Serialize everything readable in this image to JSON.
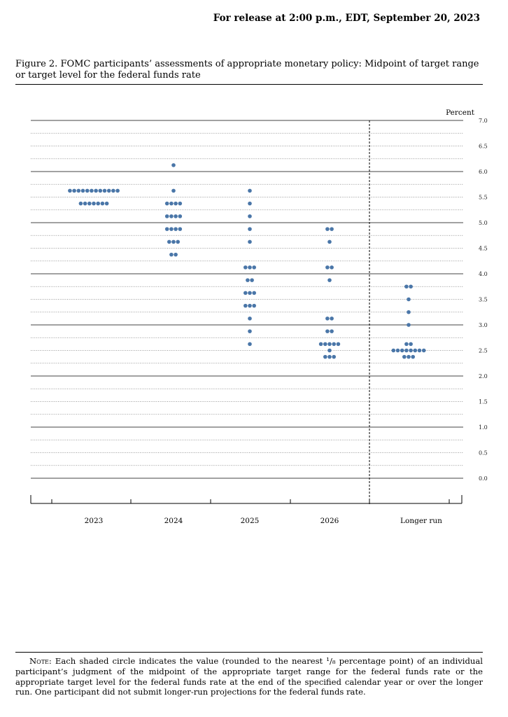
{
  "header": {
    "release_text": "For release at 2:00 p.m., EDT, September 20, 2023"
  },
  "figure": {
    "title": "Figure 2.  FOMC participants’ assessments of appropriate monetary policy:  Midpoint of target range or target level for the federal funds rate"
  },
  "note": {
    "label": "Note:",
    "text": "Each shaded circle indicates the value (rounded to the nearest ¹/₈ percentage point) of an individual participant’s judgment of the midpoint of the appropriate target range for the federal funds rate or the appropriate target level for the federal funds rate at the end of the specified calendar year or over the longer run. One participant did not submit longer-run projections for the federal funds rate."
  },
  "chart_data": {
    "type": "scatter",
    "ylabel": "Percent",
    "ylim": [
      0,
      7.0
    ],
    "y_ticks": [
      "7.0",
      "6.5",
      "6.0",
      "5.5",
      "5.0",
      "4.5",
      "4.0",
      "3.5",
      "3.0",
      "2.5",
      "2.0",
      "1.5",
      "1.0",
      "0.5",
      "0.0"
    ],
    "categories": [
      "2023",
      "2024",
      "2025",
      "2026",
      "Longer run"
    ],
    "dot_color": "#4a76a8",
    "grid": "dotted lines every 0.25, solid lines at whole numbers",
    "columns": [
      {
        "label": "2023",
        "dots": [
          {
            "y": 5.625,
            "count": 12
          },
          {
            "y": 5.375,
            "count": 7
          }
        ]
      },
      {
        "label": "2024",
        "dots": [
          {
            "y": 6.125,
            "count": 1
          },
          {
            "y": 5.625,
            "count": 1
          },
          {
            "y": 5.375,
            "count": 4
          },
          {
            "y": 5.125,
            "count": 4
          },
          {
            "y": 4.875,
            "count": 4
          },
          {
            "y": 4.625,
            "count": 3
          },
          {
            "y": 4.375,
            "count": 2
          }
        ]
      },
      {
        "label": "2025",
        "dots": [
          {
            "y": 5.625,
            "count": 1
          },
          {
            "y": 5.375,
            "count": 1
          },
          {
            "y": 5.125,
            "count": 1
          },
          {
            "y": 4.875,
            "count": 1
          },
          {
            "y": 4.625,
            "count": 1
          },
          {
            "y": 4.125,
            "count": 3
          },
          {
            "y": 3.875,
            "count": 2
          },
          {
            "y": 3.625,
            "count": 3
          },
          {
            "y": 3.375,
            "count": 3
          },
          {
            "y": 3.125,
            "count": 1
          },
          {
            "y": 2.875,
            "count": 1
          },
          {
            "y": 2.625,
            "count": 1
          }
        ]
      },
      {
        "label": "2026",
        "dots": [
          {
            "y": 4.875,
            "count": 2
          },
          {
            "y": 4.625,
            "count": 1
          },
          {
            "y": 4.125,
            "count": 2
          },
          {
            "y": 3.875,
            "count": 1
          },
          {
            "y": 3.125,
            "count": 2
          },
          {
            "y": 2.875,
            "count": 2
          },
          {
            "y": 2.625,
            "count": 5
          },
          {
            "y": 2.5,
            "count": 1
          },
          {
            "y": 2.375,
            "count": 3
          }
        ]
      },
      {
        "label": "Longer run",
        "dots": [
          {
            "y": 3.75,
            "count": 2
          },
          {
            "y": 3.5,
            "count": 1
          },
          {
            "y": 3.25,
            "count": 1
          },
          {
            "y": 3.0,
            "count": 1
          },
          {
            "y": 2.625,
            "count": 2
          },
          {
            "y": 2.5,
            "count": 8
          },
          {
            "y": 2.375,
            "count": 3
          }
        ]
      }
    ]
  }
}
